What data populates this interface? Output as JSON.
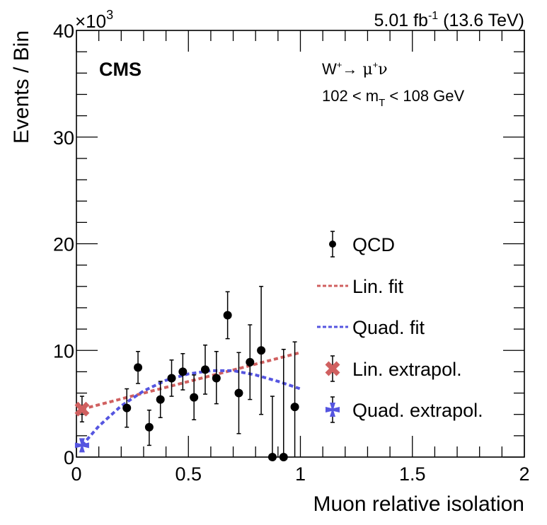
{
  "chart_data": {
    "type": "scatter",
    "title": "",
    "experiment_label": "CMS",
    "lumi_label": {
      "value": "5.01 fb",
      "sup": "-1",
      "energy": " (13.6 TeV)"
    },
    "annotations": {
      "process": {
        "W": "W",
        "W_sup": "+",
        "arrow": "→",
        "mu": " μ",
        "mu_sup": "+",
        "nu": "ν"
      },
      "range": {
        "pre": "102 < m",
        "sub": "T",
        "post": " < 108 GeV"
      }
    },
    "xlabel": "Muon relative isolation",
    "ylabel": "Events / Bin",
    "y_multiplier": {
      "base": "×10",
      "exp": "3"
    },
    "xlim": [
      0,
      2
    ],
    "ylim": [
      0,
      40
    ],
    "x_ticks": [
      "0",
      "0.5",
      "1",
      "1.5",
      "2"
    ],
    "x_tick_values": [
      0,
      0.5,
      1,
      1.5,
      2
    ],
    "y_ticks": [
      "0",
      "10",
      "20",
      "30",
      "40"
    ],
    "y_tick_values": [
      0,
      10,
      20,
      30,
      40
    ],
    "grid": false,
    "legend_position": "right",
    "series": [
      {
        "name": "QCD",
        "kind": "points",
        "color": "#000000",
        "x": [
          0.225,
          0.275,
          0.325,
          0.375,
          0.425,
          0.475,
          0.525,
          0.575,
          0.625,
          0.675,
          0.725,
          0.775,
          0.825,
          0.875,
          0.925,
          0.975
        ],
        "y": [
          4.6,
          8.4,
          2.8,
          5.4,
          7.4,
          8.0,
          5.6,
          8.2,
          7.4,
          13.3,
          6.0,
          8.9,
          10.0,
          0.0,
          0.0,
          4.7
        ],
        "err_low": [
          1.8,
          1.5,
          1.7,
          1.7,
          1.7,
          1.7,
          2.1,
          2.3,
          2.4,
          2.2,
          3.8,
          3.5,
          6.0,
          0.0,
          0.0,
          4.7
        ],
        "err_high": [
          1.8,
          1.5,
          1.6,
          1.7,
          1.7,
          1.7,
          2.1,
          2.3,
          2.5,
          2.2,
          3.8,
          3.5,
          6.0,
          5.7,
          10.1,
          6.1
        ]
      },
      {
        "name": "Lin. fit",
        "kind": "line",
        "color": "#d06060",
        "x": [
          0.025,
          1.0
        ],
        "y": [
          4.5,
          9.8
        ]
      },
      {
        "name": "Quad. fit",
        "kind": "line",
        "color": "#5555e0",
        "x": [
          0.025,
          0.1,
          0.2,
          0.3,
          0.4,
          0.5,
          0.6,
          0.7,
          0.8,
          0.9,
          1.0
        ],
        "y": [
          1.1,
          2.9,
          4.8,
          6.2,
          7.2,
          7.8,
          8.1,
          8.1,
          7.7,
          7.1,
          6.4
        ]
      },
      {
        "name": "Lin. extrapol.",
        "kind": "marker-x",
        "color": "#d06060",
        "x": [
          0.025
        ],
        "y": [
          4.5
        ],
        "err_low": [
          1.2
        ],
        "err_high": [
          1.2
        ]
      },
      {
        "name": "Quad. extrapol.",
        "kind": "marker-star",
        "color": "#5555e0",
        "x": [
          0.025
        ],
        "y": [
          1.1
        ],
        "err_low": [
          0.5
        ],
        "err_high": [
          0.5
        ]
      }
    ],
    "legend": [
      "QCD",
      "Lin. fit",
      "Quad. fit",
      "Lin. extrapol.",
      "Quad. extrapol."
    ]
  }
}
